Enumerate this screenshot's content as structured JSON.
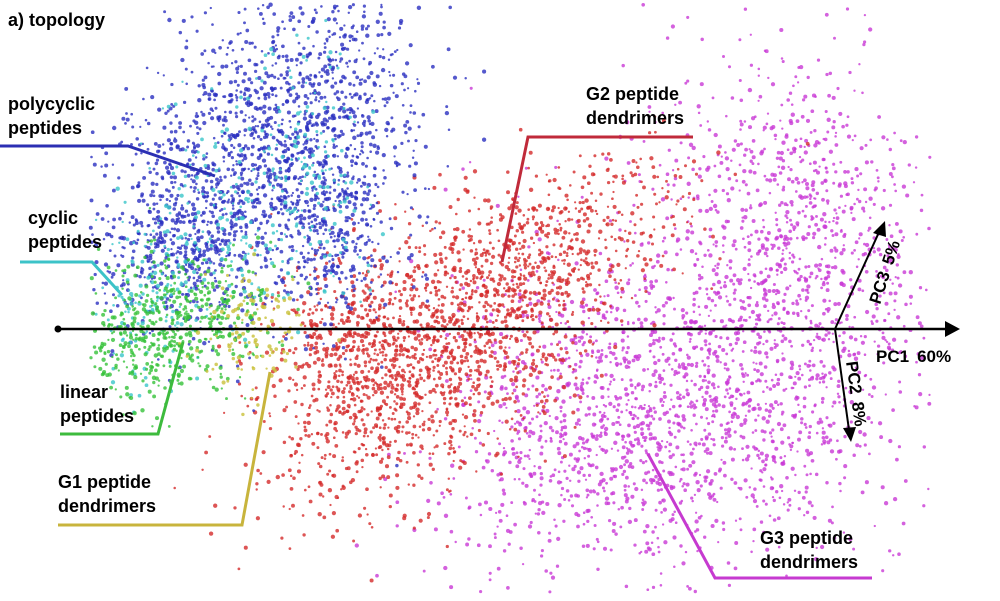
{
  "chart_data": {
    "type": "scatter",
    "title": "a) topology",
    "point_colors": {
      "polycyclic": "#2a2fc0",
      "cyclic": "#39c6c9",
      "linear": "#36c23a",
      "g1": "#c9c03a",
      "g2": "#d42a2a",
      "g3": "#c93ad6"
    },
    "groups": [
      {
        "id": "polycyclic",
        "label_lines": [
          "polycyclic",
          "peptides"
        ],
        "leader_color": "#2b2fb3"
      },
      {
        "id": "cyclic",
        "label_lines": [
          "cyclic",
          "peptides"
        ],
        "leader_color": "#3cc3c8"
      },
      {
        "id": "linear",
        "label_lines": [
          "linear",
          "peptides"
        ],
        "leader_color": "#3dbb3d"
      },
      {
        "id": "g1",
        "label_lines": [
          "G1 peptide",
          "dendrimers"
        ],
        "leader_color": "#c8b43c"
      },
      {
        "id": "g2",
        "label_lines": [
          "G2 peptide",
          "dendrimers"
        ],
        "leader_color": "#c02a3a"
      },
      {
        "id": "g3",
        "label_lines": [
          "G3 peptide",
          "dendrimers"
        ],
        "leader_color": "#c63ad0"
      }
    ],
    "axes": [
      {
        "name": "PC1",
        "variance": "60%"
      },
      {
        "name": "PC2",
        "variance": "8%"
      },
      {
        "name": "PC3",
        "variance": "5%"
      }
    ],
    "legend": "none",
    "grid": false
  }
}
